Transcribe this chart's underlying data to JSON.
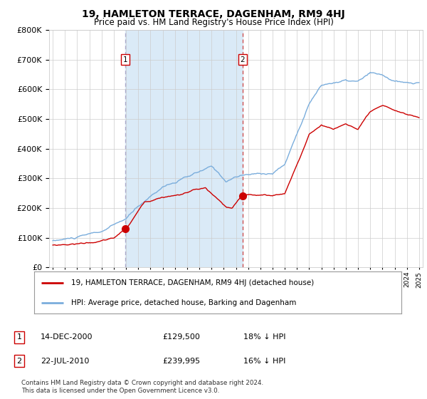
{
  "title": "19, HAMLETON TERRACE, DAGENHAM, RM9 4HJ",
  "subtitle": "Price paid vs. HM Land Registry's House Price Index (HPI)",
  "legend_line1": "19, HAMLETON TERRACE, DAGENHAM, RM9 4HJ (detached house)",
  "legend_line2": "HPI: Average price, detached house, Barking and Dagenham",
  "annotation1_date": "14-DEC-2000",
  "annotation1_price": "£129,500",
  "annotation1_hpi": "18% ↓ HPI",
  "annotation2_date": "22-JUL-2010",
  "annotation2_price": "£239,995",
  "annotation2_hpi": "16% ↓ HPI",
  "footer": "Contains HM Land Registry data © Crown copyright and database right 2024.\nThis data is licensed under the Open Government Licence v3.0.",
  "purchase1_year": 2000.95,
  "purchase1_value": 129500,
  "purchase2_year": 2010.55,
  "purchase2_value": 239995,
  "red_line_color": "#cc0000",
  "blue_line_color": "#7aaddc",
  "shaded_color": "#daeaf7",
  "vline1_color": "#aaaacc",
  "vline2_color": "#cc4444",
  "grid_color": "#cccccc",
  "background_color": "#ffffff",
  "ylim": [
    0,
    800000
  ],
  "xlim_start": 1994.7,
  "xlim_end": 2025.3
}
